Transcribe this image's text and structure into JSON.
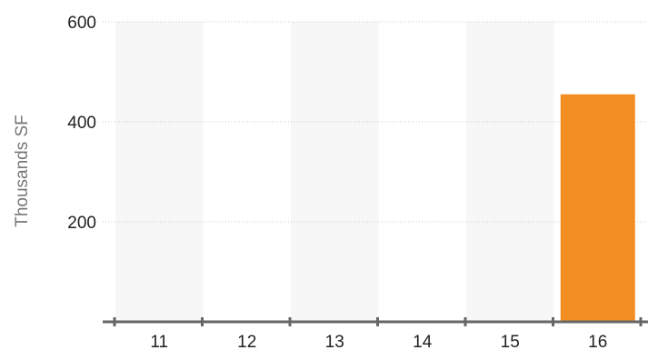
{
  "chart_data": {
    "type": "bar",
    "ylabel": "Thousands SF",
    "ylim": [
      0,
      600
    ],
    "yticks": [
      200,
      400,
      600
    ],
    "categories": [
      "11",
      "12",
      "13",
      "14",
      "15",
      "16"
    ],
    "values": [
      0,
      0,
      0,
      0,
      0,
      455
    ],
    "bar_color": "#f28d22",
    "band_color": "#f7f7f7",
    "axis_color": "#666666",
    "grid": "dotted horizontal"
  }
}
